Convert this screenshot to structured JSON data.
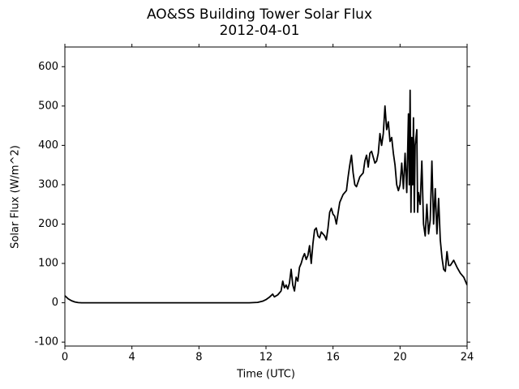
{
  "chart_data": {
    "type": "line",
    "title": "AO&SS Building Tower Solar Flux",
    "subtitle": "2012-04-01",
    "x_label": "Time (UTC)",
    "y_label": "Solar Flux (W/m^2)",
    "xlim": [
      0,
      24
    ],
    "xticks": [
      0,
      4,
      8,
      12,
      16,
      20,
      24
    ],
    "ylim": [
      -110,
      650
    ],
    "yticks": [
      -100,
      0,
      100,
      200,
      300,
      400,
      500,
      600
    ],
    "x": [
      0,
      0.2,
      0.4,
      0.6,
      0.8,
      1,
      11,
      11.5,
      11.8,
      12,
      12.2,
      12.4,
      12.5,
      12.7,
      12.9,
      13,
      13.1,
      13.2,
      13.3,
      13.4,
      13.5,
      13.6,
      13.7,
      13.8,
      13.9,
      14,
      14.1,
      14.2,
      14.3,
      14.4,
      14.5,
      14.6,
      14.7,
      14.8,
      14.9,
      15,
      15.1,
      15.2,
      15.3,
      15.5,
      15.6,
      15.7,
      15.8,
      15.9,
      16,
      16.1,
      16.2,
      16.4,
      16.6,
      16.8,
      16.9,
      17,
      17.1,
      17.2,
      17.3,
      17.4,
      17.6,
      17.8,
      17.9,
      18,
      18.1,
      18.2,
      18.3,
      18.4,
      18.5,
      18.6,
      18.7,
      18.8,
      18.9,
      19,
      19.1,
      19.2,
      19.3,
      19.4,
      19.5,
      19.6,
      19.7,
      19.8,
      19.9,
      20,
      20.1,
      20.2,
      20.3,
      20.4,
      20.5,
      20.55,
      20.6,
      20.65,
      20.7,
      20.75,
      20.8,
      20.85,
      20.9,
      21,
      21.05,
      21.1,
      21.2,
      21.3,
      21.4,
      21.5,
      21.6,
      21.7,
      21.8,
      21.9,
      22,
      22.1,
      22.2,
      22.3,
      22.4,
      22.5,
      22.6,
      22.7,
      22.8,
      22.9,
      23,
      23.2,
      23.4,
      23.6,
      23.8,
      23.9,
      24
    ],
    "series": [
      {
        "name": "Solar Flux",
        "color": "#000000",
        "values": [
          18,
          10,
          5,
          2,
          0.5,
          0,
          0,
          1,
          4,
          8,
          14,
          22,
          15,
          20,
          30,
          55,
          38,
          45,
          35,
          50,
          85,
          45,
          30,
          65,
          55,
          90,
          100,
          115,
          125,
          110,
          120,
          145,
          100,
          150,
          185,
          190,
          170,
          165,
          180,
          170,
          160,
          190,
          230,
          240,
          225,
          220,
          200,
          255,
          275,
          285,
          320,
          350,
          375,
          330,
          300,
          295,
          320,
          330,
          360,
          375,
          345,
          380,
          385,
          370,
          355,
          360,
          380,
          430,
          400,
          430,
          500,
          440,
          460,
          410,
          420,
          380,
          350,
          300,
          285,
          300,
          355,
          290,
          380,
          280,
          480,
          300,
          540,
          230,
          420,
          300,
          470,
          230,
          400,
          440,
          230,
          280,
          250,
          360,
          200,
          170,
          250,
          175,
          210,
          360,
          200,
          290,
          175,
          265,
          160,
          115,
          85,
          80,
          130,
          95,
          95,
          108,
          90,
          75,
          65,
          55,
          45
        ]
      }
    ]
  }
}
